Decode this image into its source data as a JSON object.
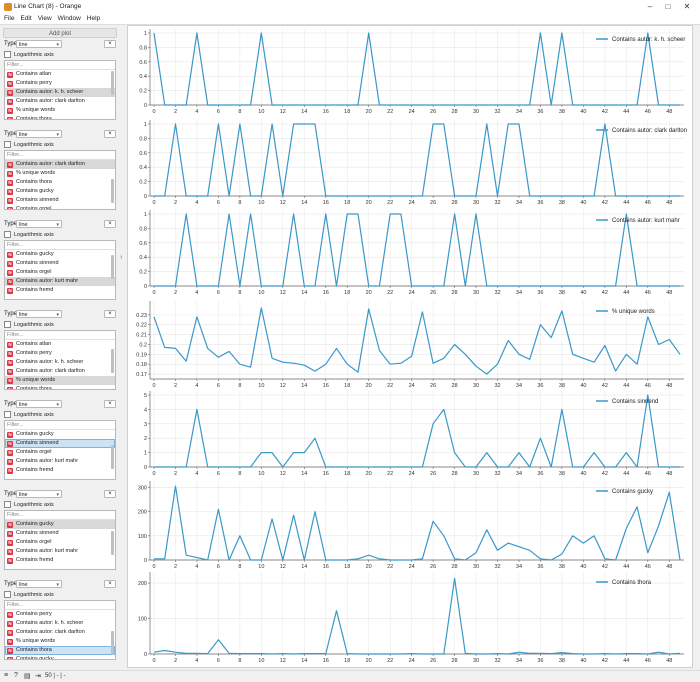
{
  "window": {
    "title": "Line Chart (8) - Orange",
    "btn_min": "–",
    "btn_max": "□",
    "btn_close": "✕"
  },
  "menu": [
    "File",
    "Edit",
    "View",
    "Window",
    "Help"
  ],
  "left": {
    "add_plot": "Add plot",
    "type_label": "Type:",
    "log_label": "Logarithmic axis",
    "filter_placeholder": "Filter...",
    "badge_letter": "N",
    "remove_label": "×"
  },
  "plots": [
    {
      "type": "line",
      "items": [
        "Contains atlan",
        "Contains perry",
        "Contains autor: k. h. scheer",
        "Contains autor: clark darlton",
        "% unique words",
        "Contains thora"
      ],
      "selected": 2,
      "sel_style": "gray"
    },
    {
      "type": "line",
      "items": [
        "Contains autor: clark darlton",
        "% unique words",
        "Contains thora",
        "Contains gucky",
        "Contains sinnend",
        "Contains orgel"
      ],
      "selected": 0,
      "sel_style": "gray"
    },
    {
      "type": "line",
      "items": [
        "Contains gucky",
        "Contains sinnend",
        "Contains orgel",
        "Contains autor: kurt mahr",
        "Contains fremd"
      ],
      "selected": 3,
      "sel_style": "gray"
    },
    {
      "type": "line",
      "items": [
        "Contains atlan",
        "Contains perry",
        "Contains autor: k. h. scheer",
        "Contains autor: clark darlton",
        "% unique words",
        "Contains thora"
      ],
      "selected": 4,
      "sel_style": "gray"
    },
    {
      "type": "line",
      "items": [
        "Contains gucky",
        "Contains sinnend",
        "Contains orgel",
        "Contains autor: kurt mahr",
        "Contains fremd"
      ],
      "selected": 1,
      "sel_style": "blue"
    },
    {
      "type": "line",
      "items": [
        "Contains gucky",
        "Contains sinnend",
        "Contains orgel",
        "Contains autor: kurt mahr",
        "Contains fremd"
      ],
      "selected": 0,
      "sel_style": "gray"
    },
    {
      "type": "line",
      "items": [
        "Contains perry",
        "Contains autor: k. h. scheer",
        "Contains autor: clark darlton",
        "% unique words",
        "Contains thora",
        "Contains gucky"
      ],
      "selected": 4,
      "sel_style": "blue"
    }
  ],
  "status": {
    "text": "50 | - | -"
  },
  "colors": {
    "line": "#3a98c8",
    "grid": "#e6e6e6",
    "badge": "#dc3545"
  },
  "chart_data": [
    {
      "type": "line",
      "series": [
        {
          "name": "Contains autor: k. h. scheer",
          "values": [
            1,
            0,
            0,
            0,
            1,
            0,
            0,
            0,
            0,
            0,
            1,
            0,
            0,
            0,
            0,
            0,
            0,
            0,
            0,
            0,
            1,
            0,
            0,
            0,
            0,
            0,
            0,
            0,
            0,
            0,
            0,
            0,
            0,
            0,
            0,
            0,
            1,
            0,
            1,
            0,
            0,
            0,
            0,
            0,
            0,
            0,
            1,
            0,
            0,
            0
          ]
        }
      ],
      "yticks": [
        0,
        0.2,
        0.4,
        0.6,
        0.8,
        1
      ],
      "ytick_labels": [
        "0",
        "0.2",
        "0.4",
        "0.6",
        "0.8",
        "1"
      ],
      "ylim": [
        0,
        1
      ]
    },
    {
      "type": "line",
      "series": [
        {
          "name": "Contains autor: clark darlton",
          "values": [
            0,
            0,
            1,
            0,
            0,
            0,
            1,
            0,
            1,
            0,
            0,
            1,
            0,
            1,
            1,
            1,
            0,
            0,
            0,
            0,
            0,
            0,
            0,
            0,
            0,
            0,
            1,
            1,
            0,
            0,
            0,
            1,
            0,
            1,
            1,
            0,
            0,
            0,
            0,
            0,
            0,
            0,
            1,
            0,
            0,
            0,
            0,
            0,
            0,
            0
          ]
        }
      ],
      "yticks": [
        0,
        0.2,
        0.4,
        0.6,
        0.8,
        1
      ],
      "ytick_labels": [
        "0",
        "0.2",
        "0.4",
        "0.6",
        "0.8",
        "1"
      ],
      "ylim": [
        0,
        1
      ]
    },
    {
      "type": "line",
      "series": [
        {
          "name": "Contains autor: kurt mahr",
          "values": [
            0,
            0,
            0,
            1,
            0,
            0,
            0,
            1,
            0,
            1,
            0,
            0,
            0,
            1,
            0,
            0,
            1,
            0,
            1,
            1,
            0,
            0,
            1,
            1,
            0,
            0,
            0,
            0,
            1,
            0,
            1,
            0,
            0,
            0,
            0,
            0,
            0,
            0,
            0,
            0,
            0,
            0,
            0,
            0,
            1,
            0,
            0,
            0,
            0,
            0
          ]
        }
      ],
      "yticks": [
        0,
        0.2,
        0.4,
        0.6,
        0.8,
        1
      ],
      "ytick_labels": [
        "0",
        "0.2",
        "0.4",
        "0.6",
        "0.8",
        "1"
      ],
      "ylim": [
        0,
        1
      ]
    },
    {
      "type": "line",
      "series": [
        {
          "name": "% unique words",
          "values": [
            0.228,
            0.197,
            0.196,
            0.183,
            0.228,
            0.196,
            0.187,
            0.193,
            0.18,
            0.177,
            0.237,
            0.186,
            0.182,
            0.181,
            0.179,
            0.173,
            0.18,
            0.196,
            0.18,
            0.172,
            0.236,
            0.194,
            0.18,
            0.181,
            0.188,
            0.233,
            0.181,
            0.186,
            0.2,
            0.19,
            0.178,
            0.17,
            0.18,
            0.204,
            0.19,
            0.185,
            0.22,
            0.207,
            0.234,
            0.19,
            0.186,
            0.182,
            0.199,
            0.173,
            0.19,
            0.18,
            0.228,
            0.2,
            0.205,
            0.19
          ]
        }
      ],
      "yticks": [
        0.17,
        0.18,
        0.19,
        0.2,
        0.21,
        0.22,
        0.23
      ],
      "ytick_labels": [
        "0.17",
        "0.18",
        "0.19",
        "0.2",
        "0.21",
        "0.22",
        "0.23"
      ],
      "ylim": [
        0.165,
        0.24
      ]
    },
    {
      "type": "line",
      "series": [
        {
          "name": "Contains sinnend",
          "values": [
            0,
            0,
            0,
            0,
            4,
            0,
            0,
            0,
            0,
            0,
            1,
            1,
            0,
            1,
            1,
            2,
            0,
            0,
            0,
            0,
            0,
            0,
            0,
            0,
            0,
            0,
            3,
            4,
            1,
            0,
            0,
            1,
            0,
            0,
            1,
            0,
            2,
            0,
            4,
            0,
            0,
            1,
            0,
            0,
            1,
            0,
            5,
            0,
            0,
            0
          ]
        }
      ],
      "yticks": [
        0,
        1,
        2,
        3,
        4,
        5
      ],
      "ytick_labels": [
        "0",
        "1",
        "2",
        "3",
        "4",
        "5"
      ],
      "ylim": [
        0,
        5
      ]
    },
    {
      "type": "line",
      "series": [
        {
          "name": "Contains gucky",
          "values": [
            5,
            5,
            305,
            20,
            10,
            0,
            210,
            0,
            100,
            0,
            0,
            170,
            0,
            185,
            0,
            200,
            0,
            0,
            0,
            5,
            20,
            5,
            0,
            0,
            0,
            5,
            160,
            100,
            5,
            0,
            30,
            125,
            40,
            70,
            55,
            40,
            5,
            0,
            25,
            100,
            70,
            100,
            5,
            0,
            130,
            220,
            30,
            140,
            280,
            0
          ]
        }
      ],
      "yticks": [
        0,
        100,
        200,
        300
      ],
      "ytick_labels": [
        "0",
        "100",
        "200",
        "300"
      ],
      "ylim": [
        0,
        310
      ]
    },
    {
      "type": "line",
      "series": [
        {
          "name": "Contains thora",
          "values": [
            5,
            10,
            5,
            2,
            2,
            1,
            40,
            2,
            1,
            1,
            1,
            0,
            1,
            0,
            1,
            1,
            1,
            122,
            1,
            0,
            0,
            0,
            0,
            0,
            1,
            0,
            0,
            0,
            213,
            2,
            0,
            0,
            1,
            0,
            5,
            2,
            2,
            1,
            4,
            1,
            0,
            0,
            1,
            0,
            1,
            1,
            0,
            5,
            0,
            2
          ]
        }
      ],
      "yticks": [
        0,
        100,
        200
      ],
      "ytick_labels": [
        "0",
        "100",
        "200"
      ],
      "ylim": [
        0,
        220
      ]
    }
  ],
  "x_tick_labels": [
    "0",
    "2",
    "4",
    "6",
    "8",
    "10",
    "12",
    "14",
    "16",
    "18",
    "20",
    "22",
    "24",
    "26",
    "28",
    "30",
    "32",
    "34",
    "36",
    "38",
    "40",
    "42",
    "44",
    "46",
    "48"
  ]
}
